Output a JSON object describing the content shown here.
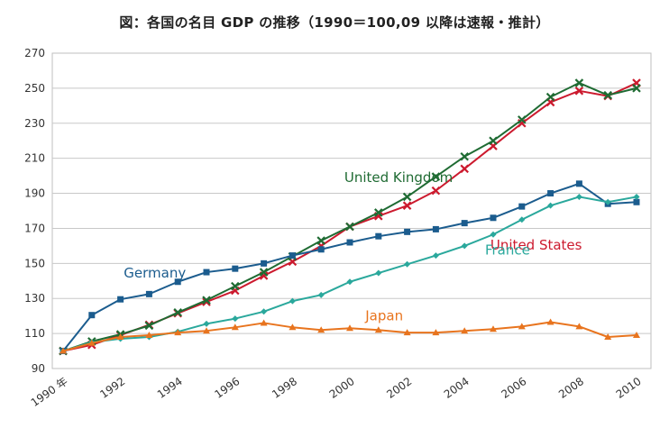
{
  "chart_data": {
    "type": "line",
    "title": "図：各国の名目 GDP の推移（1990＝100,09 以降は速報・推計）",
    "xlabel": "",
    "ylabel": "",
    "x": [
      1990,
      1991,
      1992,
      1993,
      1994,
      1995,
      1996,
      1997,
      1998,
      1999,
      2000,
      2001,
      2002,
      2003,
      2004,
      2005,
      2006,
      2007,
      2008,
      2009,
      2010
    ],
    "xlim": [
      1990,
      2010
    ],
    "ylim": [
      90,
      270
    ],
    "y_ticks": [
      90,
      110,
      130,
      150,
      170,
      190,
      210,
      230,
      250,
      270
    ],
    "x_tick_labels": [
      {
        "x": 1990,
        "label": "1990 年"
      },
      {
        "x": 1992,
        "label": "1992"
      },
      {
        "x": 1994,
        "label": "1994"
      },
      {
        "x": 1996,
        "label": "1996"
      },
      {
        "x": 1998,
        "label": "1998"
      },
      {
        "x": 2000,
        "label": "2000"
      },
      {
        "x": 2002,
        "label": "2002"
      },
      {
        "x": 2004,
        "label": "2004"
      },
      {
        "x": 2006,
        "label": "2006"
      },
      {
        "x": 2008,
        "label": "2008"
      },
      {
        "x": 2010,
        "label": "2010"
      }
    ],
    "grid": "horizontal",
    "legend": "inline labels",
    "series": [
      {
        "name": "United States",
        "color": "#cc1a2e",
        "marker": "x",
        "label_at": {
          "x": 2006.5,
          "y": 158
        },
        "values": [
          100,
          103.5,
          109,
          115,
          121.5,
          128,
          134.5,
          143,
          151,
          160,
          171,
          177,
          183,
          191.5,
          204,
          217,
          230,
          242,
          248.5,
          245.5,
          253
        ]
      },
      {
        "name": "United Kingdom",
        "color": "#1f6b33",
        "marker": "x",
        "label_at": {
          "x": 2001.7,
          "y": 196.5
        },
        "values": [
          100,
          105.5,
          109.5,
          114.5,
          122,
          129,
          137,
          145,
          154,
          163,
          171,
          179,
          188,
          199.5,
          211,
          220,
          232,
          245,
          253,
          246,
          250
        ]
      },
      {
        "name": "Germany",
        "color": "#1b5c8e",
        "marker": "square",
        "label_at": {
          "x": 1993.2,
          "y": 142
        },
        "values": [
          100,
          120.5,
          129.5,
          132.5,
          139.5,
          145,
          147,
          150,
          154.5,
          158,
          162,
          165.5,
          168,
          169.5,
          173,
          176,
          182.5,
          190,
          195.5,
          184,
          185
        ]
      },
      {
        "name": "France",
        "color": "#2aa89c",
        "marker": "diamond",
        "label_at": {
          "x": 2005.5,
          "y": 155
        },
        "values": [
          100,
          105,
          107,
          108,
          111,
          115.5,
          118.5,
          122.5,
          128.5,
          132,
          139.5,
          144.5,
          149.5,
          154.5,
          160,
          166.5,
          175,
          183,
          188,
          185,
          188
        ]
      },
      {
        "name": "Japan",
        "color": "#e8741e",
        "marker": "triangle",
        "label_at": {
          "x": 2001.2,
          "y": 117.5
        },
        "values": [
          100,
          104.5,
          108,
          109,
          110.5,
          111.5,
          113.5,
          116,
          113.5,
          112,
          113,
          112,
          110.5,
          110.5,
          111.5,
          112.5,
          114,
          116.5,
          114,
          108,
          109
        ]
      }
    ]
  }
}
